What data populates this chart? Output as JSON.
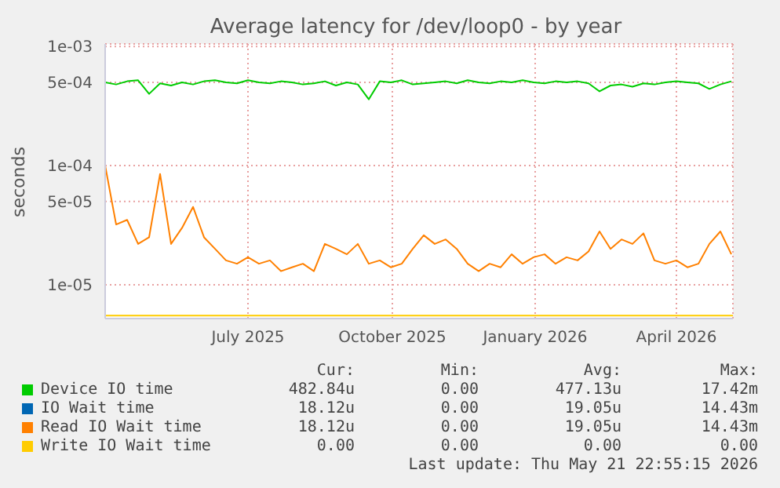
{
  "chart_data": {
    "type": "line",
    "title": "Average latency for /dev/loop0 - by year",
    "ylabel": "seconds",
    "log": "y",
    "grid": true,
    "legend": "bottom",
    "marker": "none",
    "line_style": "solid",
    "x": [
      "2025-04-16",
      "2025-04-23",
      "2025-04-30",
      "2025-05-07",
      "2025-05-14",
      "2025-05-21",
      "2025-05-28",
      "2025-06-04",
      "2025-06-11",
      "2025-06-18",
      "2025-06-25",
      "2025-07-02",
      "2025-07-09",
      "2025-07-16",
      "2025-07-23",
      "2025-07-30",
      "2025-08-06",
      "2025-08-13",
      "2025-08-20",
      "2025-08-27",
      "2025-09-03",
      "2025-09-10",
      "2025-09-17",
      "2025-09-24",
      "2025-10-01",
      "2025-10-08",
      "2025-10-15",
      "2025-10-22",
      "2025-10-29",
      "2025-11-05",
      "2025-11-12",
      "2025-11-19",
      "2025-11-26",
      "2025-12-03",
      "2025-12-10",
      "2025-12-17",
      "2025-12-24",
      "2025-12-31",
      "2026-01-07",
      "2026-01-14",
      "2026-01-21",
      "2026-01-28",
      "2026-02-04",
      "2026-02-11",
      "2026-02-18",
      "2026-02-25",
      "2026-03-04",
      "2026-03-11",
      "2026-03-18",
      "2026-03-25",
      "2026-04-01",
      "2026-04-08",
      "2026-04-15",
      "2026-04-22",
      "2026-04-29",
      "2026-05-06",
      "2026-05-13",
      "2026-05-20"
    ],
    "xlim": [
      "2025-04-16",
      "2026-05-21"
    ],
    "xticks": [
      {
        "value": "2025-07-16",
        "label": "July 2025"
      },
      {
        "value": "2025-10-16",
        "label": "October 2025"
      },
      {
        "value": "2026-01-15",
        "label": "January 2026"
      },
      {
        "value": "2026-04-15",
        "label": "April 2026"
      }
    ],
    "ylim": [
      5.2e-06,
      0.00105
    ],
    "yticks": [
      {
        "value": 1e-05,
        "label": "1e-05"
      },
      {
        "value": 5e-05,
        "label": "5e-05"
      },
      {
        "value": 0.0001,
        "label": "1e-04"
      },
      {
        "value": 0.0005,
        "label": "5e-04"
      },
      {
        "value": 0.001,
        "label": "1e-03"
      }
    ],
    "series": [
      {
        "name": "Device IO time",
        "color": "#00cc00",
        "values": [
          0.0005,
          0.00048,
          0.00051,
          0.00052,
          0.0004,
          0.00049,
          0.00047,
          0.0005,
          0.00048,
          0.00051,
          0.00052,
          0.0005,
          0.00049,
          0.00052,
          0.0005,
          0.00049,
          0.00051,
          0.0005,
          0.00048,
          0.00049,
          0.00051,
          0.00047,
          0.0005,
          0.00048,
          0.00036,
          0.00051,
          0.0005,
          0.00052,
          0.00048,
          0.00049,
          0.0005,
          0.00051,
          0.00049,
          0.00052,
          0.0005,
          0.00049,
          0.00051,
          0.0005,
          0.00052,
          0.0005,
          0.00049,
          0.00051,
          0.0005,
          0.00051,
          0.00049,
          0.00042,
          0.00047,
          0.00048,
          0.00046,
          0.00049,
          0.00048,
          0.0005,
          0.00051,
          0.0005,
          0.00049,
          0.00044,
          0.00048,
          0.00051
        ]
      },
      {
        "name": "IO Wait time",
        "color": "#0066b3",
        "values": [
          null,
          null,
          null,
          null,
          null,
          null,
          null,
          null,
          null,
          null,
          null,
          null,
          null,
          null,
          null,
          null,
          null,
          null,
          null,
          null,
          null,
          null,
          null,
          null,
          null,
          null,
          null,
          null,
          null,
          null,
          null,
          null,
          null,
          null,
          null,
          null,
          null,
          null,
          null,
          null,
          null,
          null,
          null,
          null,
          null,
          null,
          null,
          null,
          null,
          null,
          null,
          null,
          null,
          null,
          null,
          null,
          null,
          null
        ]
      },
      {
        "name": "Read IO Wait time",
        "color": "#ff8000",
        "values": [
          0.0001,
          3.2e-05,
          3.5e-05,
          2.2e-05,
          2.5e-05,
          8.5e-05,
          2.2e-05,
          3e-05,
          4.5e-05,
          2.5e-05,
          2e-05,
          1.6e-05,
          1.5e-05,
          1.7e-05,
          1.5e-05,
          1.6e-05,
          1.3e-05,
          1.4e-05,
          1.5e-05,
          1.3e-05,
          2.2e-05,
          2e-05,
          1.8e-05,
          2.2e-05,
          1.5e-05,
          1.6e-05,
          1.4e-05,
          1.5e-05,
          2e-05,
          2.6e-05,
          2.2e-05,
          2.4e-05,
          2e-05,
          1.5e-05,
          1.3e-05,
          1.5e-05,
          1.4e-05,
          1.8e-05,
          1.5e-05,
          1.7e-05,
          1.8e-05,
          1.5e-05,
          1.7e-05,
          1.6e-05,
          1.9e-05,
          2.8e-05,
          2e-05,
          2.4e-05,
          2.2e-05,
          2.7e-05,
          1.6e-05,
          1.5e-05,
          1.6e-05,
          1.4e-05,
          1.5e-05,
          2.2e-05,
          2.8e-05,
          1.8e-05
        ]
      },
      {
        "name": "Write IO Wait time",
        "color": "#ffcc00",
        "x": [
          "2025-04-16",
          "2026-05-21"
        ],
        "values": [
          5.5e-06,
          5.5e-06
        ]
      }
    ],
    "annotations": [
      "Cur:",
      "Min:",
      "Avg:",
      "Max:",
      "482.84u",
      "0.00",
      "477.13u",
      "17.42m",
      "18.12u",
      "0.00",
      "19.05u",
      "14.43m",
      "18.12u",
      "0.00",
      "19.05u",
      "14.43m",
      "0.00",
      "0.00",
      "0.00",
      "0.00",
      "Last update: Thu May 21 22:55:15 2026"
    ]
  }
}
